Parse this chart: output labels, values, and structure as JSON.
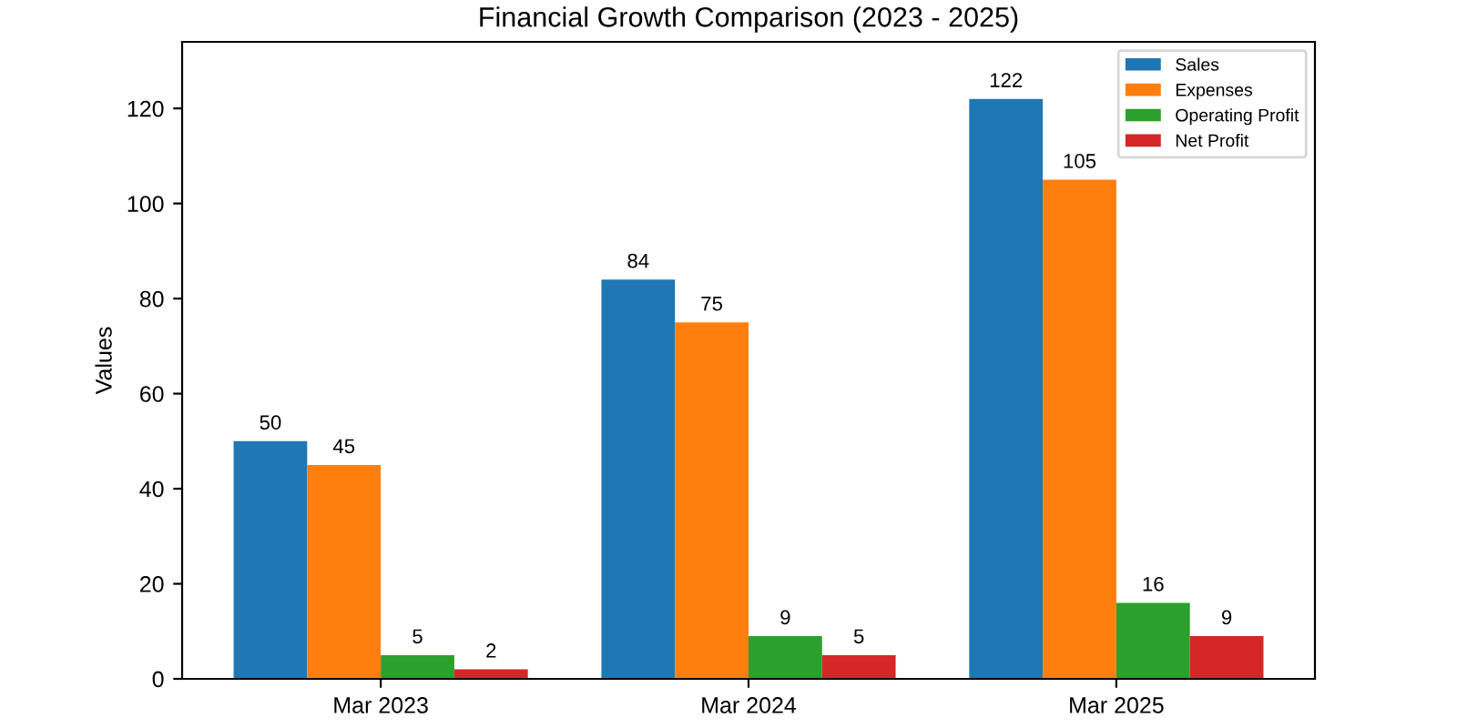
{
  "chart_data": {
    "type": "bar",
    "title": "Financial Growth Comparison (2023 - 2025)",
    "ylabel": "Values",
    "categories": [
      "Mar 2023",
      "Mar 2024",
      "Mar 2025"
    ],
    "series": [
      {
        "name": "Sales",
        "color": "#1f77b4",
        "values": [
          50,
          84,
          122
        ]
      },
      {
        "name": "Expenses",
        "color": "#ff7f0e",
        "values": [
          45,
          75,
          105
        ]
      },
      {
        "name": "Operating Profit",
        "color": "#2ca02c",
        "values": [
          5,
          9,
          16
        ]
      },
      {
        "name": "Net Profit",
        "color": "#d62728",
        "values": [
          2,
          5,
          9
        ]
      }
    ],
    "ylim": [
      0,
      134
    ],
    "yticks": [
      0,
      20,
      40,
      60,
      80,
      100,
      120
    ],
    "data_labels": true,
    "legend": "top right",
    "grid": false
  }
}
